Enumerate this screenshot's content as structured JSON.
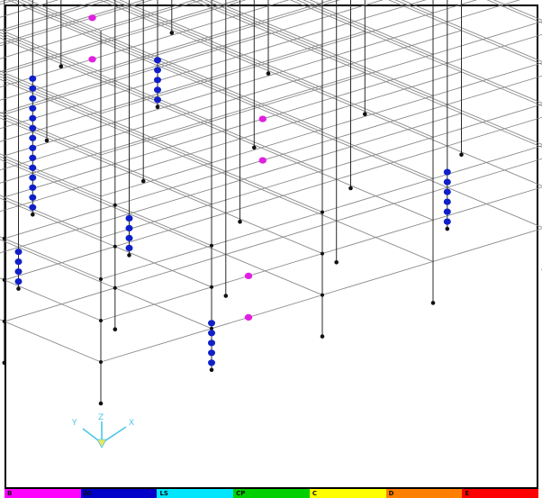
{
  "colors": {
    "frame_lines": "#8a8a8a",
    "columns": "#2a2a2a",
    "node": "#111111",
    "hinge_io": "#e020e0",
    "hinge_ls": "#1020c8",
    "triad": "#4cc6e8"
  },
  "triad": {
    "labels": [
      "Y",
      "Z",
      "X"
    ]
  },
  "legend": [
    {
      "label": "B",
      "color": "#ff00ff"
    },
    {
      "label": "IO",
      "color": "#0000c8"
    },
    {
      "label": "LS",
      "color": "#00e6ff"
    },
    {
      "label": "CP",
      "color": "#00d000"
    },
    {
      "label": "C",
      "color": "#ffff00"
    },
    {
      "label": "D",
      "color": "#ff8000"
    },
    {
      "label": "E",
      "color": "#ff0000"
    }
  ]
}
